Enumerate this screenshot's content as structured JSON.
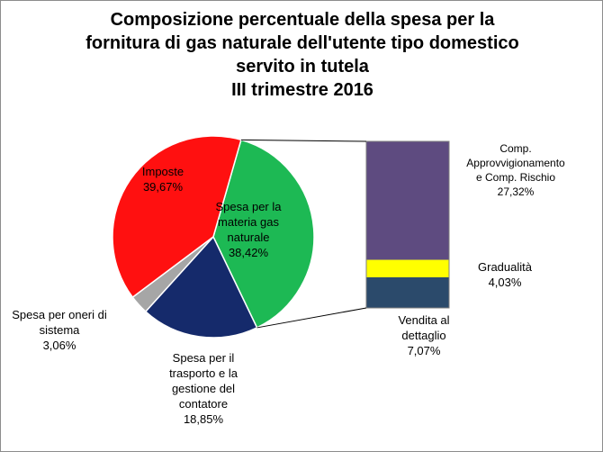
{
  "title_lines": [
    "Composizione percentuale della spesa per la",
    "fornitura di gas naturale dell'utente tipo domestico",
    "servito in tutela",
    "III trimestre 2016"
  ],
  "chart_data": [
    {
      "type": "pie",
      "title": "Composizione percentuale della spesa per la fornitura di gas naturale dell'utente tipo domestico servito in tutela - III trimestre 2016",
      "slices": [
        {
          "label_lines": [
            "Spesa per la",
            "materia gas",
            "naturale"
          ],
          "value_text": "38,42%",
          "value": 38.42,
          "color": "#1db954"
        },
        {
          "label_lines": [
            "Spesa per il",
            "trasporto e la",
            "gestione del",
            "contatore"
          ],
          "value_text": "18,85%",
          "value": 18.85,
          "color": "#152a6b"
        },
        {
          "label_lines": [
            "Spesa per oneri di",
            "sistema"
          ],
          "value_text": "3,06%",
          "value": 3.06,
          "color": "#a6a6a6"
        },
        {
          "label_lines": [
            "Imposte"
          ],
          "value_text": "39,67%",
          "value": 39.67,
          "color": "#ff1010"
        }
      ]
    },
    {
      "type": "bar",
      "stacked": true,
      "breakdown_of": "Spesa per la materia gas naturale",
      "segments": [
        {
          "label_lines": [
            "Vendita al",
            "dettaglio"
          ],
          "value_text": "7,07%",
          "value": 7.07,
          "color": "#2b4a6b"
        },
        {
          "label_lines": [
            "Gradualità"
          ],
          "value_text": "4,03%",
          "value": 4.03,
          "color": "#ffff00"
        },
        {
          "label_lines": [
            "Comp.",
            "Approvvigionamento",
            "e  Comp. Rischio"
          ],
          "value_text": "27,32%",
          "value": 27.32,
          "color": "#5e4b80"
        }
      ]
    }
  ]
}
